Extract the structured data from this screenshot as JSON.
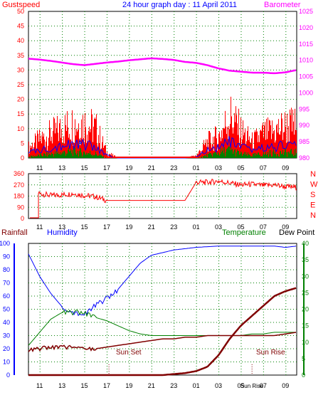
{
  "colors": {
    "gust": "#ff0000",
    "wind_avg": "#0000ff",
    "wind_low": "#008000",
    "barometer": "#ff00ff",
    "wind_dir": "#ff0000",
    "humidity": "#0000ff",
    "temperature": "#008000",
    "dewpoint": "#800000",
    "rainfall": "#800000",
    "grid": "#008000",
    "title": "#0000ff",
    "left_axis": "#ff0000",
    "right_axis": "#ff00ff",
    "dir_axis": "#ff0000",
    "bottom_left": "#0000ff",
    "bottom_right": "#008000",
    "annotation": "#800000"
  },
  "chart_data": [
    {
      "type": "line",
      "title": "24 hour graph day : 11 April 2011",
      "left_label": "Gustspeed",
      "right_label": "Barometer",
      "x_ticks": [
        "11",
        "13",
        "15",
        "17",
        "19",
        "21",
        "23",
        "01",
        "03",
        "05",
        "07",
        "09"
      ],
      "y_left": {
        "ticks": [
          0,
          5,
          10,
          15,
          20,
          25,
          30,
          35,
          40,
          45,
          50
        ],
        "range": [
          0,
          50
        ]
      },
      "y_right": {
        "ticks": [
          980,
          985,
          990,
          995,
          1000,
          1005,
          1010,
          1015,
          1020,
          1025
        ],
        "range": [
          980,
          1025
        ]
      },
      "hours": [
        0,
        1,
        2,
        3,
        4,
        5,
        6,
        7,
        8,
        9,
        10,
        11,
        12,
        13,
        14,
        15,
        16,
        17,
        18,
        19,
        20,
        21,
        22,
        23,
        24
      ],
      "series": [
        {
          "axis": "right",
          "values": [
            1010.5,
            1010.2,
            1009.8,
            1009.3,
            1008.8,
            1008.5,
            1008.9,
            1009.3,
            1009.6,
            1010,
            1010.3,
            1010.6,
            1010.4,
            1010.1,
            1009.5,
            1009.2,
            1008.5,
            1007.5,
            1006.8,
            1006.5,
            1006.2,
            1006.2,
            1006,
            1006.3,
            1007
          ]
        },
        {
          "axis": "left",
          "values": [
            4,
            7,
            9,
            11,
            13,
            13,
            11,
            2,
            0,
            0,
            0,
            0,
            0,
            0,
            0,
            1,
            6,
            8,
            16,
            10,
            6,
            9,
            10,
            12,
            12
          ]
        },
        {
          "axis": "left",
          "values": [
            2,
            3,
            4,
            5,
            5,
            5,
            4,
            1,
            0,
            0,
            0,
            0,
            0,
            0,
            0,
            0.5,
            3,
            4,
            6,
            4,
            3,
            4,
            4,
            5,
            5
          ]
        },
        {
          "axis": "left",
          "values": [
            0.5,
            1,
            1.5,
            2,
            2.5,
            2,
            1.5,
            0,
            0,
            0,
            0,
            0,
            0,
            0,
            0,
            0,
            1,
            2,
            3,
            1.5,
            1,
            1.5,
            2,
            2,
            2
          ]
        }
      ]
    },
    {
      "type": "line",
      "x_ticks": [
        "11",
        "13",
        "15",
        "17",
        "19",
        "21",
        "23",
        "01",
        "03",
        "05",
        "07",
        "09"
      ],
      "y_left": {
        "ticks": [
          0,
          90,
          180,
          270,
          360
        ],
        "range": [
          0,
          360
        ]
      },
      "direction_labels": [
        "N",
        "W",
        "S",
        "E",
        "N"
      ],
      "hours": [
        0,
        1,
        2,
        3,
        4,
        5,
        6,
        7,
        8,
        9,
        10,
        11,
        12,
        13,
        14,
        15,
        16,
        17,
        18,
        19,
        20,
        21,
        22,
        23,
        24
      ],
      "series": [
        {
          "values": [
            270,
            200,
            185,
            190,
            200,
            185,
            175,
            145,
            145,
            145,
            145,
            145,
            145,
            145,
            145,
            290,
            290,
            300,
            285,
            270,
            275,
            265,
            270,
            255,
            250
          ]
        }
      ]
    },
    {
      "type": "line",
      "left_label": "Rainfall",
      "left_label_2": "Humidity",
      "right_label": "Temperature",
      "right_label_2": "Dew Point",
      "annotations": [
        "Sun Set",
        "Sun Rise"
      ],
      "x_ticks": [
        "11",
        "13",
        "15",
        "17",
        "19",
        "21",
        "23",
        "01",
        "03",
        "05",
        "Sun Rise",
        "07",
        "09"
      ],
      "y_left": {
        "ticks": [
          0,
          10,
          20,
          30,
          40,
          50,
          60,
          70,
          80,
          90,
          100
        ],
        "range": [
          0,
          100
        ]
      },
      "y_right": {
        "ticks": [
          0,
          5,
          10,
          15,
          20,
          25,
          30,
          35,
          40
        ],
        "range": [
          0,
          40
        ]
      },
      "hours": [
        0,
        1,
        2,
        3,
        4,
        5,
        6,
        7,
        8,
        9,
        10,
        11,
        12,
        13,
        14,
        15,
        16,
        17,
        18,
        19,
        20,
        21,
        22,
        23,
        24
      ],
      "series": [
        {
          "axis": "left",
          "values": [
            92,
            75,
            62,
            52,
            48,
            46,
            53,
            58,
            65,
            75,
            85,
            91,
            93,
            95,
            96,
            97,
            97.5,
            98,
            98,
            98,
            98,
            98,
            98,
            97,
            98
          ]
        },
        {
          "axis": "right",
          "values": [
            9,
            13,
            17,
            19,
            19,
            19,
            17.5,
            16.5,
            15,
            13.5,
            12.5,
            12,
            12,
            12,
            12,
            12,
            12,
            12,
            12,
            12,
            12.5,
            12.5,
            13,
            13,
            13
          ]
        },
        {
          "axis": "right",
          "values": [
            7.5,
            8,
            8.5,
            8.5,
            8.5,
            8,
            8,
            8.5,
            9,
            9.5,
            10,
            10.5,
            11,
            11,
            11.5,
            11.5,
            12,
            12,
            12,
            12,
            12,
            12,
            12,
            12.5,
            13
          ]
        },
        {
          "axis": "right",
          "values": [
            0,
            0,
            0,
            0,
            0,
            0,
            0,
            0,
            0,
            0,
            0,
            0,
            0,
            0.3,
            0.6,
            1.2,
            2.5,
            6,
            11,
            15,
            18,
            21,
            24,
            25.5,
            26.5
          ]
        }
      ]
    }
  ]
}
